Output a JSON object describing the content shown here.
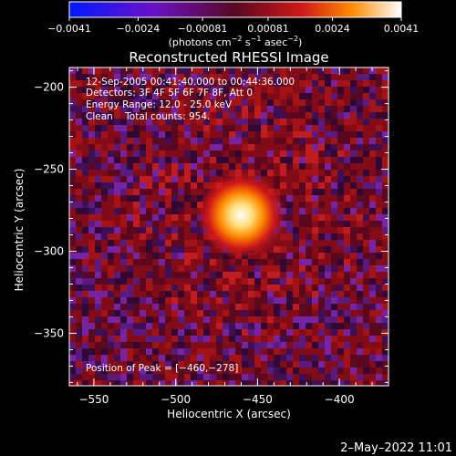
{
  "chart_data": {
    "type": "heatmap",
    "title": "Reconstructed RHESSI Image",
    "xlabel": "Heliocentric X (arcsec)",
    "ylabel": "Heliocentric Y (arcsec)",
    "xlim": [
      -565,
      -370
    ],
    "ylim": [
      -382,
      -188
    ],
    "x_ticks": [
      -550,
      -500,
      -450,
      -400
    ],
    "y_ticks": [
      -200,
      -250,
      -300,
      -350
    ],
    "x_tick_labels": [
      "−550",
      "−500",
      "−450",
      "−400"
    ],
    "y_tick_labels": [
      "−200",
      "−250",
      "−300",
      "−350"
    ],
    "info_lines": [
      "12-Sep-2005 00:41:40.000 to 00:44:36.000",
      "Detectors: 3F 4F 5F 6F 7F 8F, Att 0",
      "Energy Range: 12.0 - 25.0 keV",
      "Clean    Total counts: 954."
    ],
    "peak_label": "Position of Peak = [−460,−278]",
    "peak": {
      "x": -460,
      "y": -278
    },
    "colorbar": {
      "range": [
        -0.0041,
        0.0041
      ],
      "tick_values": [
        -0.0041,
        -0.0024,
        -0.00081,
        0.00081,
        0.0024,
        0.0041
      ],
      "tick_labels": [
        "−0.0041",
        "−0.0024",
        "−0.00081",
        "0.00081",
        "0.0024",
        "0.0041"
      ],
      "units_main": "(photons cm",
      "units_sup1": "−2",
      "units_mid1": " s",
      "units_sup2": "−1",
      "units_mid2": " asec",
      "units_sup3": "−2",
      "units_end": ")",
      "colors": [
        "#1a2cff",
        "#6a10b8",
        "#5a0820",
        "#c01010",
        "#ff7a00",
        "#ffe060",
        "#ffffff"
      ]
    },
    "colors": {
      "zero_level": "#5a0820"
    }
  },
  "footer": {
    "timestamp": "2–May–2022 11:01"
  }
}
